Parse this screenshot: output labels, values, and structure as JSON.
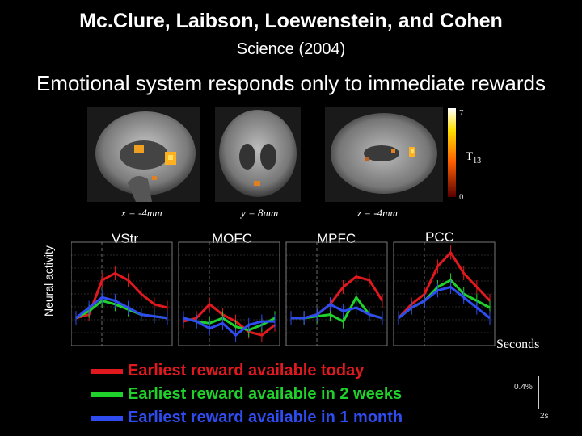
{
  "header": {
    "title": "Mc.Clure, Laibson, Loewenstein, and Cohen",
    "subtitle": "Science (2004)",
    "headline": "Emotional system responds only to immediate rewards"
  },
  "brain_images": {
    "coords": [
      "x = -4mm",
      "y = 8mm",
      "z = -4mm"
    ],
    "colorbar": {
      "max_label": "7",
      "min_label": "0",
      "stat": "T",
      "stat_sub": "13"
    }
  },
  "plot": {
    "ylabel": "Neural activity",
    "xlabel": "Seconds",
    "panels": [
      "VStr",
      "MOFC",
      "MPFC",
      "PCC"
    ],
    "scale_bar": {
      "y_label": "0.4%",
      "x_label": "2s"
    }
  },
  "legend": [
    {
      "label": "Earliest reward available today",
      "color": "#e0191f"
    },
    {
      "label": "Earliest reward available in 2 weeks",
      "color": "#1fd12a"
    },
    {
      "label": "Earliest reward available in 1 month",
      "color": "#2f4cf0"
    }
  ],
  "chart_data": {
    "type": "line",
    "panels": [
      {
        "name": "VStr",
        "series": [
          {
            "name": "Earliest reward available today",
            "values": [
              0.0,
              0.1,
              1.1,
              1.3,
              1.1,
              0.7,
              0.4,
              0.3
            ]
          },
          {
            "name": "Earliest reward available in 2 weeks",
            "values": [
              0.0,
              0.2,
              0.5,
              0.4,
              0.25,
              0.1,
              0.05,
              0.0
            ]
          },
          {
            "name": "Earliest reward available in 1 month",
            "values": [
              0.0,
              0.3,
              0.6,
              0.5,
              0.3,
              0.1,
              0.05,
              0.0
            ]
          }
        ]
      },
      {
        "name": "MOFC",
        "series": [
          {
            "name": "Earliest reward available today",
            "values": [
              -0.1,
              0.0,
              0.4,
              0.1,
              -0.1,
              -0.4,
              -0.5,
              -0.2
            ]
          },
          {
            "name": "Earliest reward available in 2 weeks",
            "values": [
              0.0,
              -0.1,
              -0.15,
              0.0,
              -0.25,
              -0.35,
              -0.2,
              0.0
            ]
          },
          {
            "name": "Earliest reward available in 1 month",
            "values": [
              0.0,
              -0.1,
              -0.3,
              -0.15,
              -0.5,
              -0.2,
              -0.1,
              -0.1
            ]
          }
        ]
      },
      {
        "name": "MPFC",
        "series": [
          {
            "name": "Earliest reward available today",
            "values": [
              0.0,
              0.0,
              0.1,
              0.4,
              0.9,
              1.2,
              1.1,
              0.5
            ]
          },
          {
            "name": "Earliest reward available in 2 weeks",
            "values": [
              0.0,
              0.0,
              0.05,
              0.1,
              -0.1,
              0.6,
              0.1,
              0.0
            ]
          },
          {
            "name": "Earliest reward available in 1 month",
            "values": [
              0.0,
              0.0,
              0.1,
              0.4,
              0.2,
              0.3,
              0.1,
              0.0
            ]
          }
        ]
      },
      {
        "name": "PCC",
        "series": [
          {
            "name": "Earliest reward available today",
            "values": [
              0.0,
              0.4,
              0.7,
              1.5,
              1.9,
              1.3,
              0.9,
              0.5
            ]
          },
          {
            "name": "Earliest reward available in 2 weeks",
            "values": [
              0.0,
              0.3,
              0.5,
              0.9,
              1.1,
              0.7,
              0.5,
              0.3
            ]
          },
          {
            "name": "Earliest reward available in 1 month",
            "values": [
              0.0,
              0.3,
              0.5,
              0.8,
              0.9,
              0.6,
              0.3,
              0.0
            ]
          }
        ]
      }
    ],
    "xlabel": "Seconds",
    "ylabel": "Neural activity",
    "ylim": [
      -0.8,
      2.2
    ],
    "grid": true
  }
}
